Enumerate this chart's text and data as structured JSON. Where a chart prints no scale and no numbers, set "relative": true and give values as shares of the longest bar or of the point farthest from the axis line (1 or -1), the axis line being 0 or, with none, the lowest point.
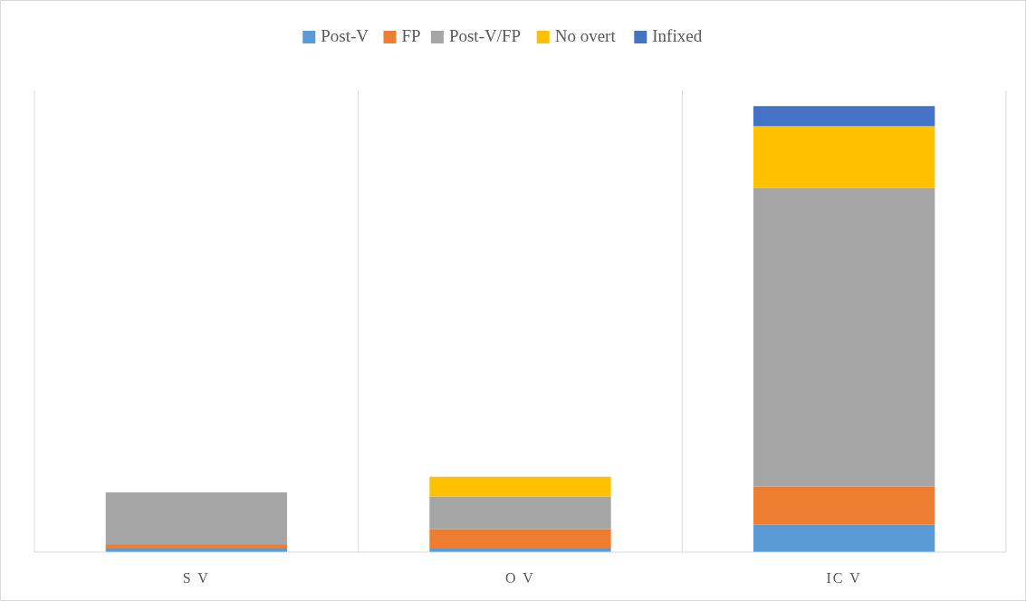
{
  "chart_data": {
    "type": "bar",
    "stacked": true,
    "relative": true,
    "categories": [
      "S V",
      "O V",
      "IC V"
    ],
    "legend": "top",
    "grid": "x",
    "series": [
      {
        "name": "Post-V",
        "color": "#5b9bd5",
        "values": [
          0.01,
          0.01,
          0.062
        ]
      },
      {
        "name": "FP",
        "color": "#ed7d31",
        "values": [
          0.008,
          0.042,
          0.085
        ]
      },
      {
        "name": "Post-V/FP",
        "color": "#a5a5a5",
        "values": [
          0.116,
          0.073,
          0.669
        ]
      },
      {
        "name": "No overt",
        "color": "#ffc000",
        "values": [
          0,
          0.044,
          0.139
        ]
      },
      {
        "name": "Infixed",
        "color": "#4472c4",
        "values": [
          0,
          0,
          0.045
        ]
      }
    ]
  }
}
